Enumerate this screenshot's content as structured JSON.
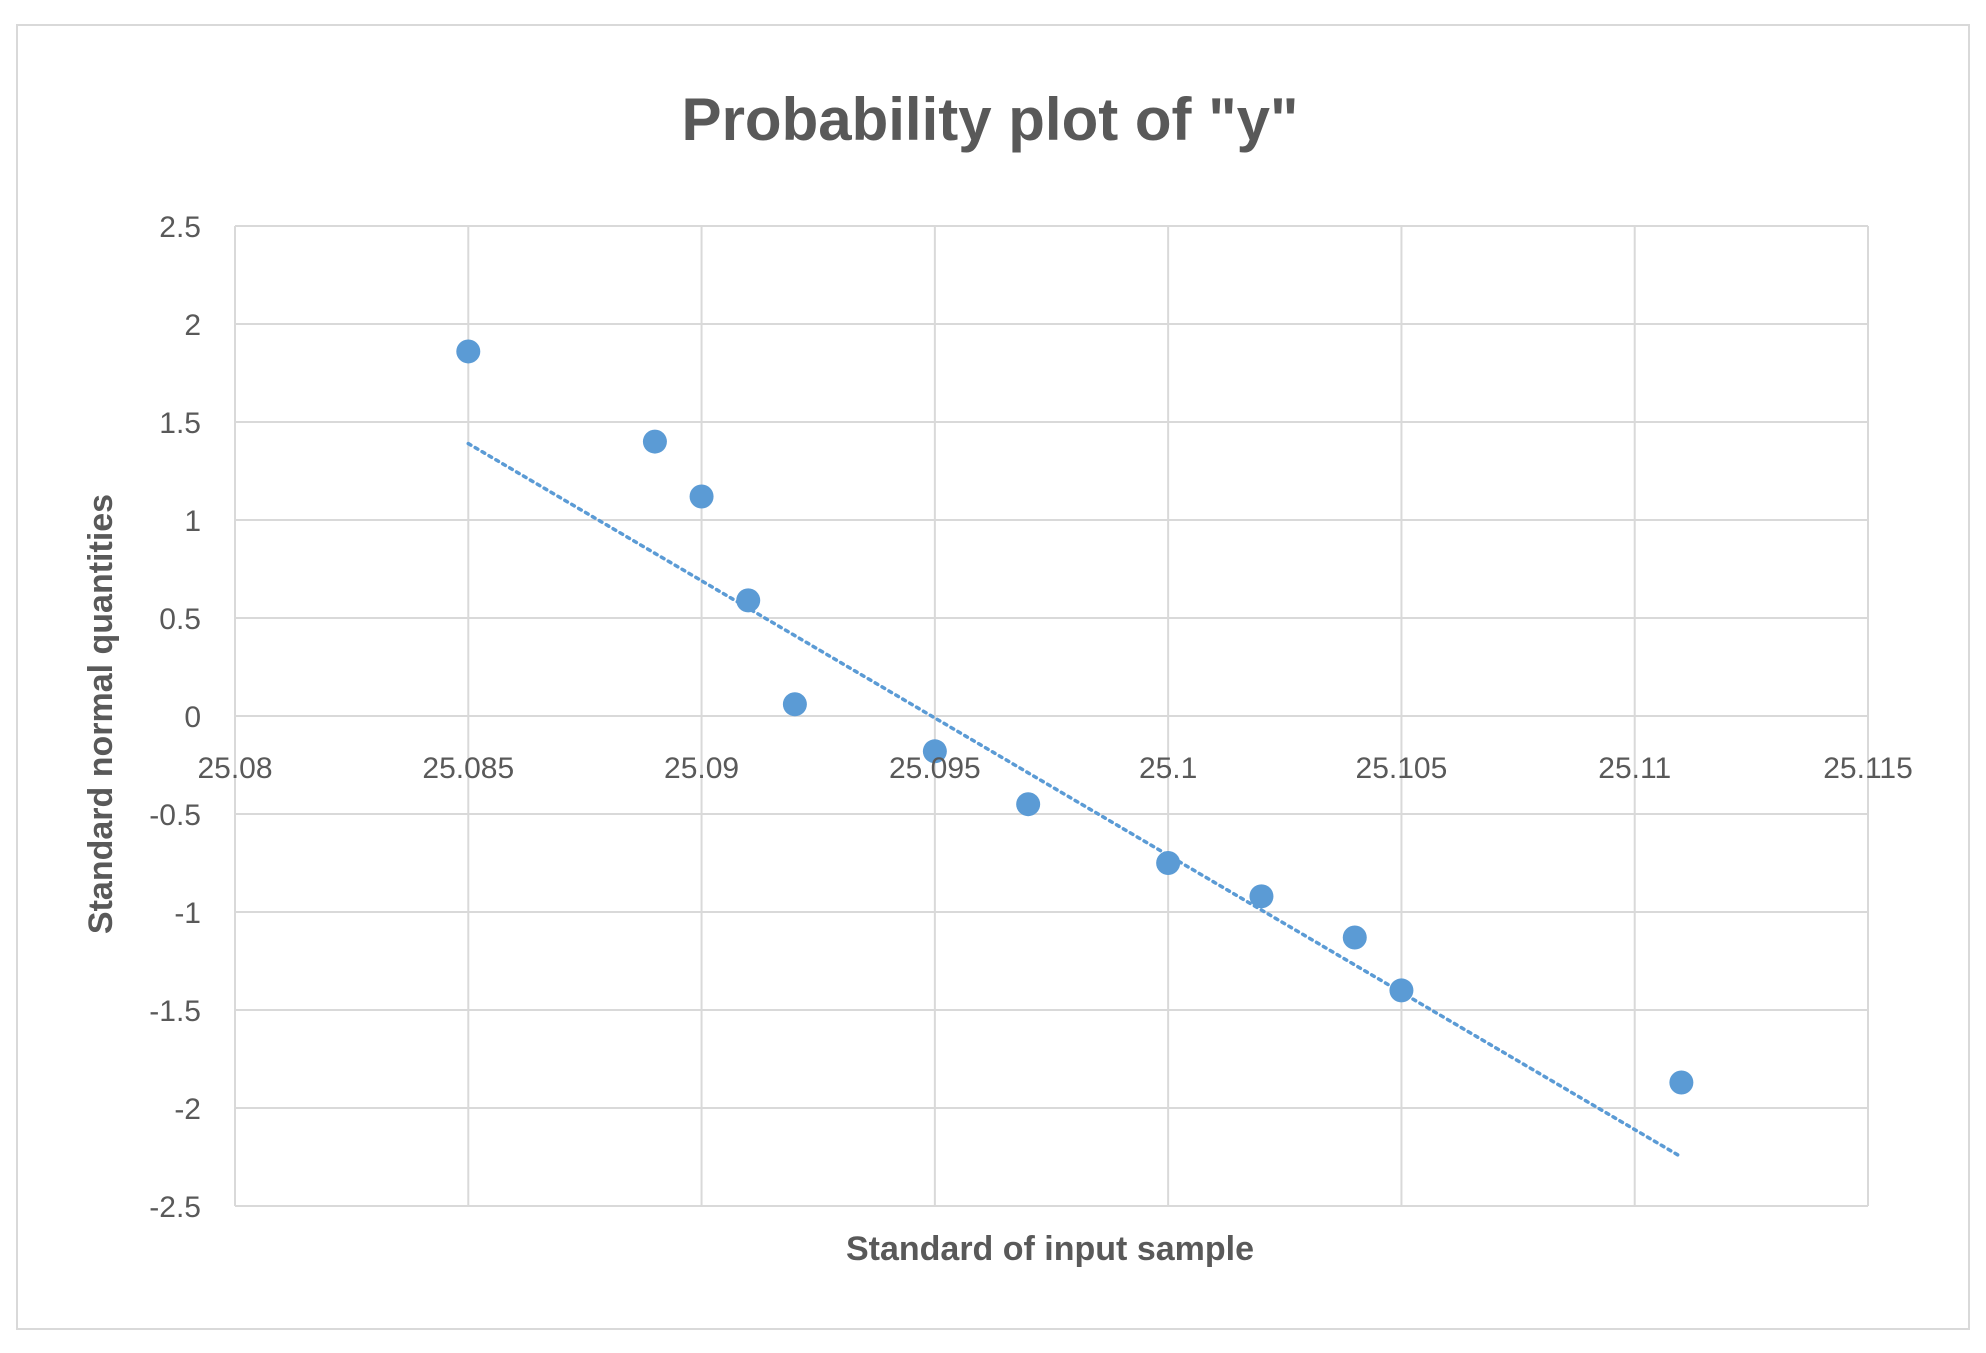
{
  "chart_data": {
    "type": "scatter",
    "title": "Probability plot of  \"y\"",
    "xlabel": "Standard of input sample",
    "ylabel": "Standard normal quantities",
    "xlim": [
      25.08,
      25.115
    ],
    "ylim": [
      -2.5,
      2.5
    ],
    "x_ticks": [
      "25.08",
      "25.085",
      "25.09",
      "25.095",
      "25.1",
      "25.105",
      "25.11",
      "25.115"
    ],
    "y_ticks": [
      "2.5",
      "2",
      "1.5",
      "1",
      "0.5",
      "0",
      "-0.5",
      "-1",
      "-1.5",
      "-2",
      "-2.5"
    ],
    "grid": true,
    "series": [
      {
        "x": [
          25.085,
          25.089,
          25.09,
          25.091,
          25.092,
          25.095,
          25.097,
          25.1,
          25.102,
          25.104,
          25.105,
          25.111
        ],
        "y": [
          1.86,
          1.4,
          1.12,
          0.59,
          0.06,
          -0.18,
          -0.45,
          -0.75,
          -0.92,
          -1.13,
          -1.4,
          -1.87
        ],
        "color": "#5b9bd5"
      }
    ],
    "trendline": {
      "type": "linear",
      "style": "dotted",
      "x": [
        25.085,
        25.111
      ],
      "y": [
        1.39,
        -2.25
      ],
      "color": "#5b9bd5"
    }
  }
}
